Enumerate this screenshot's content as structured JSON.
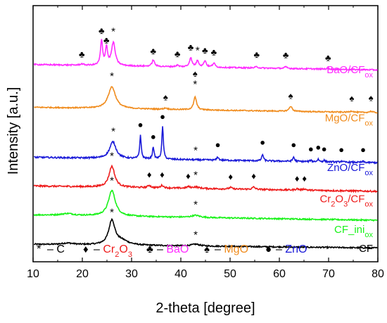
{
  "chart_data": {
    "type": "line",
    "xlabel": "2-theta [degree]",
    "ylabel": "Intensity [a.u.]",
    "xlim": [
      10,
      80
    ],
    "xticks": [
      10,
      20,
      30,
      40,
      50,
      60,
      70,
      80
    ],
    "ylim": [
      0,
      100
    ],
    "grid": false,
    "y_ticklabels": "none",
    "series": [
      {
        "id": "cf",
        "color": "#000000",
        "label": {
          "main": "CF",
          "sub": ""
        },
        "baseline": 6.8,
        "slope": -0.02,
        "noise": 0.25,
        "peaks": [
          {
            "x": 17.0,
            "h": 0.6,
            "w": 1.5
          },
          {
            "x": 26.0,
            "h": 9.5,
            "w": 0.75
          },
          {
            "x": 28.0,
            "h": 1.6,
            "w": 1.6
          },
          {
            "x": 43.0,
            "h": 0.7,
            "w": 1.0
          }
        ]
      },
      {
        "id": "cf-ini",
        "color": "#19f219",
        "label": {
          "main": "CF_ini",
          "sub": "ox"
        },
        "baseline": 18.3,
        "slope": -0.03,
        "noise": 0.25,
        "peaks": [
          {
            "x": 17.0,
            "h": 0.7,
            "w": 1.5
          },
          {
            "x": 26.0,
            "h": 10.0,
            "w": 0.85
          },
          {
            "x": 43.0,
            "h": 0.8,
            "w": 1.0
          }
        ]
      },
      {
        "id": "cr2o3",
        "color": "#ee1c1c",
        "label": {
          "main": "Cr",
          "sub": "2",
          "main2": "O",
          "sub2": "3",
          "main3": "/CF",
          "sub3": "ox"
        },
        "baseline": 29.6,
        "slope": -0.03,
        "noise": 0.3,
        "peaks": [
          {
            "x": 26.0,
            "h": 8.2,
            "w": 0.7
          },
          {
            "x": 33.6,
            "h": 0.9,
            "w": 0.35
          },
          {
            "x": 36.2,
            "h": 1.0,
            "w": 0.35
          },
          {
            "x": 41.5,
            "h": 0.6,
            "w": 0.35
          },
          {
            "x": 43.0,
            "h": 0.6,
            "w": 0.8
          },
          {
            "x": 50.1,
            "h": 0.6,
            "w": 0.35
          },
          {
            "x": 54.8,
            "h": 0.9,
            "w": 0.35
          },
          {
            "x": 63.6,
            "h": 0.5,
            "w": 0.35
          },
          {
            "x": 65.1,
            "h": 0.5,
            "w": 0.35
          }
        ]
      },
      {
        "id": "zno",
        "color": "#1a1ad8",
        "label": {
          "main": "ZnO/CF",
          "sub": "ox"
        },
        "baseline": 40.8,
        "slope": -0.03,
        "noise": 0.3,
        "peaks": [
          {
            "x": 26.2,
            "h": 6.5,
            "w": 0.8
          },
          {
            "x": 31.8,
            "h": 9.2,
            "w": 0.18
          },
          {
            "x": 34.4,
            "h": 4.8,
            "w": 0.18
          },
          {
            "x": 36.3,
            "h": 12.8,
            "w": 0.18
          },
          {
            "x": 47.5,
            "h": 1.3,
            "w": 0.2
          },
          {
            "x": 56.6,
            "h": 2.6,
            "w": 0.2
          },
          {
            "x": 62.9,
            "h": 1.7,
            "w": 0.2
          },
          {
            "x": 66.4,
            "h": 0.5,
            "w": 0.2
          },
          {
            "x": 67.9,
            "h": 1.0,
            "w": 0.2
          },
          {
            "x": 69.1,
            "h": 0.6,
            "w": 0.2
          },
          {
            "x": 72.6,
            "h": 0.4,
            "w": 0.2
          },
          {
            "x": 77.0,
            "h": 0.4,
            "w": 0.2
          }
        ]
      },
      {
        "id": "mgo",
        "color": "#f08c1e",
        "label": {
          "main": "MgO/CF",
          "sub": "ox"
        },
        "baseline": 60.3,
        "slope": -0.03,
        "noise": 0.22,
        "peaks": [
          {
            "x": 26.0,
            "h": 8.5,
            "w": 0.9
          },
          {
            "x": 36.9,
            "h": 0.5,
            "w": 0.4
          },
          {
            "x": 42.9,
            "h": 5.0,
            "w": 0.35
          },
          {
            "x": 62.3,
            "h": 2.0,
            "w": 0.35
          },
          {
            "x": 74.7,
            "h": 0.5,
            "w": 0.4
          },
          {
            "x": 78.6,
            "h": 0.5,
            "w": 0.4
          }
        ]
      },
      {
        "id": "bao",
        "color": "#ff2bff",
        "label": {
          "main": "BaO/CF",
          "sub": "ox"
        },
        "baseline": 77.0,
        "slope": -0.03,
        "noise": 0.25,
        "peaks": [
          {
            "x": 19.9,
            "h": 0.5,
            "w": 0.4
          },
          {
            "x": 23.9,
            "h": 9.6,
            "w": 0.25
          },
          {
            "x": 24.9,
            "h": 7.0,
            "w": 0.25
          },
          {
            "x": 26.3,
            "h": 9.0,
            "w": 0.45
          },
          {
            "x": 34.4,
            "h": 2.5,
            "w": 0.3
          },
          {
            "x": 39.3,
            "h": 0.6,
            "w": 0.3
          },
          {
            "x": 42.0,
            "h": 3.6,
            "w": 0.3
          },
          {
            "x": 43.4,
            "h": 2.5,
            "w": 0.3
          },
          {
            "x": 44.9,
            "h": 2.5,
            "w": 0.3
          },
          {
            "x": 46.7,
            "h": 1.6,
            "w": 0.3
          },
          {
            "x": 55.4,
            "h": 0.5,
            "w": 0.35
          },
          {
            "x": 61.3,
            "h": 0.6,
            "w": 0.35
          },
          {
            "x": 69.9,
            "h": 0.4,
            "w": 0.35
          }
        ]
      }
    ],
    "markers": [
      {
        "s": "*",
        "x": 26.0,
        "y": 18.0
      },
      {
        "s": "*",
        "x": 43.0,
        "y": 9.2
      },
      {
        "s": "*",
        "x": 26.0,
        "y": 30.3
      },
      {
        "s": "*",
        "x": 43.0,
        "y": 21.0
      },
      {
        "s": "*",
        "x": 26.0,
        "y": 40.0
      },
      {
        "s": "*",
        "x": 43.0,
        "y": 32.6
      },
      {
        "s": "♦",
        "x": 33.6,
        "y": 32.8
      },
      {
        "s": "♦",
        "x": 36.2,
        "y": 32.8
      },
      {
        "s": "♦",
        "x": 41.5,
        "y": 32.3
      },
      {
        "s": "♦",
        "x": 50.1,
        "y": 32.0
      },
      {
        "s": "♦",
        "x": 54.8,
        "y": 32.3
      },
      {
        "s": "♦",
        "x": 63.6,
        "y": 31.3
      },
      {
        "s": "♦",
        "x": 65.1,
        "y": 31.3
      },
      {
        "s": "*",
        "x": 26.3,
        "y": 49.6
      },
      {
        "s": "*",
        "x": 43.0,
        "y": 42.2
      },
      {
        "s": "●",
        "x": 31.8,
        "y": 52.3
      },
      {
        "s": "●",
        "x": 34.4,
        "y": 47.7
      },
      {
        "s": "●",
        "x": 36.3,
        "y": 55.5
      },
      {
        "s": "●",
        "x": 47.5,
        "y": 44.5
      },
      {
        "s": "●",
        "x": 56.6,
        "y": 45.4
      },
      {
        "s": "●",
        "x": 62.9,
        "y": 44.5
      },
      {
        "s": "●",
        "x": 66.4,
        "y": 42.8
      },
      {
        "s": "●",
        "x": 67.9,
        "y": 43.5
      },
      {
        "s": "●",
        "x": 69.1,
        "y": 42.8
      },
      {
        "s": "●",
        "x": 72.6,
        "y": 42.6
      },
      {
        "s": "●",
        "x": 77.0,
        "y": 42.6
      },
      {
        "s": "*",
        "x": 26.0,
        "y": 71.2
      },
      {
        "s": "*",
        "x": 42.9,
        "y": 68.0
      },
      {
        "s": "♠",
        "x": 42.9,
        "y": 72.3
      },
      {
        "s": "♠",
        "x": 36.9,
        "y": 63.0
      },
      {
        "s": "♠",
        "x": 62.3,
        "y": 63.6
      },
      {
        "s": "♠",
        "x": 74.7,
        "y": 62.6
      },
      {
        "s": "♠",
        "x": 78.6,
        "y": 62.8
      },
      {
        "s": "♣",
        "x": 19.9,
        "y": 79.8
      },
      {
        "s": "♣",
        "x": 23.9,
        "y": 89.0
      },
      {
        "s": "♣",
        "x": 24.9,
        "y": 85.3
      },
      {
        "s": "*",
        "x": 26.3,
        "y": 88.6
      },
      {
        "s": "♣",
        "x": 34.4,
        "y": 81.0
      },
      {
        "s": "♣",
        "x": 39.3,
        "y": 79.9
      },
      {
        "s": "♣",
        "x": 42.0,
        "y": 82.6
      },
      {
        "s": "*",
        "x": 43.4,
        "y": 81.2
      },
      {
        "s": "♣",
        "x": 44.9,
        "y": 81.3
      },
      {
        "s": "♣",
        "x": 46.7,
        "y": 80.6
      },
      {
        "s": "♣",
        "x": 55.4,
        "y": 79.7
      },
      {
        "s": "♣",
        "x": 61.3,
        "y": 79.5
      },
      {
        "s": "♣",
        "x": 69.9,
        "y": 78.5
      }
    ],
    "legend": {
      "position": "bottom",
      "items": [
        {
          "symbol": "*",
          "dash": "–",
          "text": "C",
          "sub": "",
          "text2": "",
          "sub2": "",
          "color": "#000000"
        },
        {
          "symbol": "♦",
          "dash": "–",
          "text": "Cr",
          "sub": "2",
          "text2": "O",
          "sub2": "3",
          "color": "#ee1c1c"
        },
        {
          "symbol": "♣",
          "dash": "–",
          "text": "BaO",
          "sub": "",
          "text2": "",
          "sub2": "",
          "color": "#ff2bff"
        },
        {
          "symbol": "♠",
          "dash": "–",
          "text": "MgO",
          "sub": "",
          "text2": "",
          "sub2": "",
          "color": "#f08c1e"
        },
        {
          "symbol": "●",
          "dash": "–",
          "text": "ZnO",
          "sub": "",
          "text2": "",
          "sub2": "",
          "color": "#1a1ad8"
        }
      ]
    }
  }
}
